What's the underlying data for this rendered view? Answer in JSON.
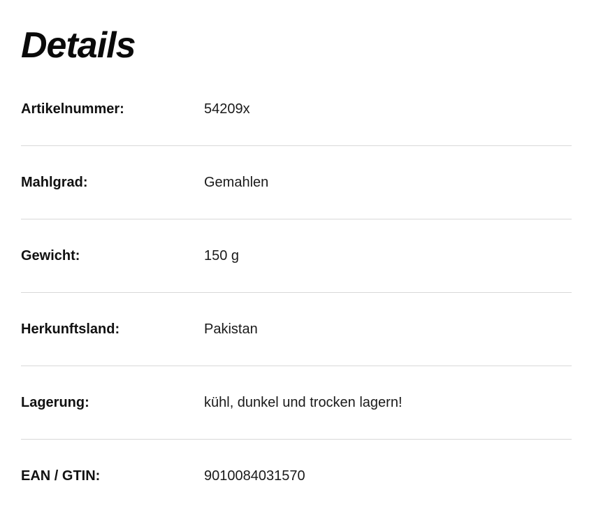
{
  "details": {
    "heading": "Details",
    "rows": [
      {
        "label": "Artikelnummer:",
        "value": "54209x"
      },
      {
        "label": "Mahlgrad:",
        "value": "Gemahlen"
      },
      {
        "label": "Gewicht:",
        "value": "150 g"
      },
      {
        "label": "Herkunftsland:",
        "value": "Pakistan"
      },
      {
        "label": "Lagerung:",
        "value": "kühl, dunkel und trocken lagern!"
      },
      {
        "label": "EAN / GTIN:",
        "value": "9010084031570"
      }
    ],
    "colors": {
      "background": "#ffffff",
      "text": "#111111",
      "divider": "#d8d8d8"
    }
  }
}
